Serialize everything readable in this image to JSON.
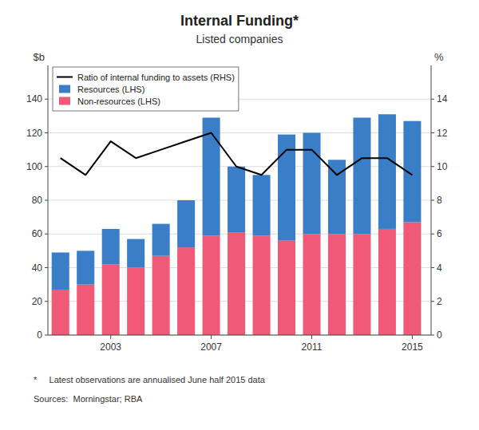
{
  "chart_data": {
    "type": "bar",
    "stacked": true,
    "title": "Internal Funding*",
    "subtitle": "Listed companies",
    "y_label": "$b",
    "y2_label": "%",
    "x": [
      2001,
      2002,
      2003,
      2004,
      2005,
      2006,
      2007,
      2008,
      2009,
      2010,
      2011,
      2012,
      2013,
      2014,
      2015
    ],
    "series": [
      {
        "name": "Non-resources (LHS)",
        "type": "bar",
        "color": "#f05a78",
        "values": [
          27,
          30,
          42,
          40,
          47,
          52,
          59,
          61,
          59,
          56,
          60,
          60,
          60,
          63,
          67
        ]
      },
      {
        "name": "Resources (LHS)",
        "type": "bar",
        "color": "#3a7ec8",
        "values": [
          22,
          20,
          21,
          17,
          19,
          28,
          70,
          39,
          36,
          63,
          60,
          44,
          69,
          68,
          60
        ]
      },
      {
        "name": "Ratio of internal funding to assets (RHS)",
        "type": "line",
        "axis": "y2",
        "color": "#000000",
        "values": [
          10.5,
          9.5,
          11.5,
          10.5,
          11.0,
          11.5,
          12.0,
          10.0,
          9.5,
          11.0,
          11.0,
          9.5,
          10.5,
          10.5,
          9.5
        ]
      }
    ],
    "xlim": [
      2000.5,
      2015.75
    ],
    "xticks": [
      2003,
      2007,
      2011,
      2015
    ],
    "ylim": [
      0,
      160
    ],
    "yticks": [
      0,
      20,
      40,
      60,
      80,
      100,
      120,
      140
    ],
    "y2lim": [
      0,
      16
    ],
    "y2ticks": [
      0,
      2,
      4,
      6,
      8,
      10,
      12,
      14
    ],
    "grid": true,
    "legend": "upper left",
    "annotations": [
      "*     Latest observations are annualised June half 2015 data",
      "Sources:  Morningstar; RBA"
    ]
  }
}
